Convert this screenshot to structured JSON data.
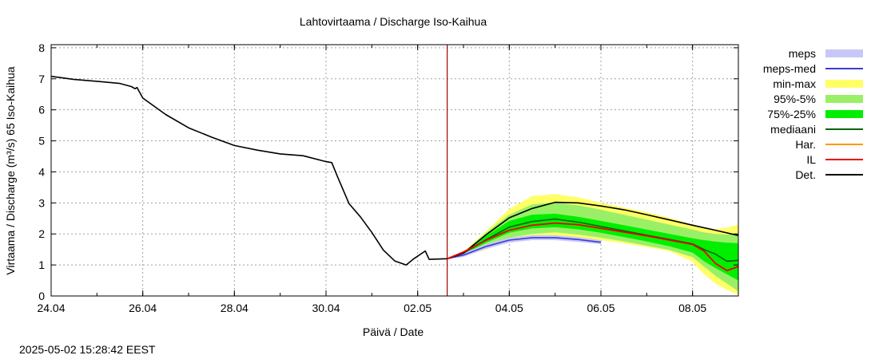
{
  "page": {
    "timestamp": "2025-05-02 15:28:42 EEST"
  },
  "chart_data": {
    "type": "line",
    "title": "Lahtovirtaama / Discharge  Iso-Kaihua",
    "xlabel": "Päivä / Date",
    "ylabel": "Virtaama / Discharge (m³/s)  65 Iso-Kaihua",
    "ylim": [
      0,
      8.1
    ],
    "xlim": [
      "2025-04-24T00:00",
      "2025-05-09T00:00"
    ],
    "yticks": [
      0,
      1,
      2,
      3,
      4,
      5,
      6,
      7,
      8
    ],
    "xticks": [
      {
        "x": "2025-04-24T00:00",
        "label": "24.04"
      },
      {
        "x": "2025-04-26T00:00",
        "label": "26.04"
      },
      {
        "x": "2025-04-28T00:00",
        "label": "28.04"
      },
      {
        "x": "2025-04-30T00:00",
        "label": "30.04"
      },
      {
        "x": "2025-05-02T00:00",
        "label": "02.05"
      },
      {
        "x": "2025-05-04T00:00",
        "label": "04.05"
      },
      {
        "x": "2025-05-06T00:00",
        "label": "06.05"
      },
      {
        "x": "2025-05-08T00:00",
        "label": "08.05"
      }
    ],
    "grid": true,
    "legend_position": "right",
    "current_time": "2025-05-02T15:28",
    "current_time_color": "#aa0000",
    "legend": [
      {
        "label": "meps",
        "kind": "band",
        "color": "#c8c8f8"
      },
      {
        "label": "meps-med",
        "kind": "line",
        "color": "#3b3bd0"
      },
      {
        "label": "min-max",
        "kind": "band",
        "color": "#ffff66"
      },
      {
        "label": "95%-5%",
        "kind": "band",
        "color": "#99f066"
      },
      {
        "label": "75%-25%",
        "kind": "band",
        "color": "#00ee00"
      },
      {
        "label": "mediaani",
        "kind": "line",
        "color": "#006600"
      },
      {
        "label": "Har.",
        "kind": "line",
        "color": "#ff9900"
      },
      {
        "label": "IL",
        "kind": "line",
        "color": "#ee0000"
      },
      {
        "label": "Det.",
        "kind": "line",
        "color": "#000000"
      }
    ],
    "observed": {
      "name": "Det.",
      "x": [
        "2025-04-24T00:00",
        "2025-04-24T12:00",
        "2025-04-25T00:00",
        "2025-04-25T12:00",
        "2025-04-25T18:00",
        "2025-04-25T20:00",
        "2025-04-25T21:00",
        "2025-04-26T00:00",
        "2025-04-26T12:00",
        "2025-04-27T00:00",
        "2025-04-27T12:00",
        "2025-04-28T00:00",
        "2025-04-28T12:00",
        "2025-04-29T00:00",
        "2025-04-29T12:00",
        "2025-04-30T00:00",
        "2025-04-30T03:00",
        "2025-04-30T06:00",
        "2025-04-30T12:00",
        "2025-04-30T18:00",
        "2025-05-01T00:00",
        "2025-05-01T06:00",
        "2025-05-01T12:00",
        "2025-05-01T18:00",
        "2025-05-01T22:00",
        "2025-05-02T04:00",
        "2025-05-02T06:00",
        "2025-05-02T15:28"
      ],
      "y": [
        7.08,
        6.98,
        6.92,
        6.85,
        6.75,
        6.68,
        6.72,
        6.38,
        5.85,
        5.42,
        5.12,
        4.85,
        4.7,
        4.58,
        4.52,
        4.33,
        4.3,
        3.85,
        2.98,
        2.55,
        2.05,
        1.48,
        1.13,
        1.0,
        1.2,
        1.45,
        1.18,
        1.2
      ]
    },
    "series": [
      {
        "name": "Det.",
        "x": [
          "2025-05-02T15:28",
          "2025-05-03T00:00",
          "2025-05-03T12:00",
          "2025-05-04T00:00",
          "2025-05-04T12:00",
          "2025-05-05T00:00",
          "2025-05-05T12:00",
          "2025-05-06T00:00",
          "2025-05-06T12:00",
          "2025-05-07T00:00",
          "2025-05-07T12:00",
          "2025-05-08T00:00",
          "2025-05-08T12:00",
          "2025-05-09T00:00"
        ],
        "y": [
          1.2,
          1.38,
          1.98,
          2.52,
          2.82,
          3.02,
          3.0,
          2.9,
          2.78,
          2.62,
          2.45,
          2.28,
          2.12,
          1.95
        ]
      },
      {
        "name": "mediaani",
        "x": [
          "2025-05-02T15:28",
          "2025-05-03T00:00",
          "2025-05-03T12:00",
          "2025-05-04T00:00",
          "2025-05-04T12:00",
          "2025-05-05T00:00",
          "2025-05-05T12:00",
          "2025-05-06T00:00",
          "2025-05-06T12:00",
          "2025-05-07T00:00",
          "2025-05-07T12:00",
          "2025-05-08T00:00",
          "2025-05-08T06:00",
          "2025-05-08T12:00",
          "2025-05-08T18:00",
          "2025-05-09T00:00"
        ],
        "y": [
          1.2,
          1.38,
          1.82,
          2.22,
          2.4,
          2.48,
          2.38,
          2.24,
          2.1,
          1.96,
          1.82,
          1.68,
          1.5,
          1.35,
          1.12,
          1.15
        ]
      },
      {
        "name": "IL",
        "x": [
          "2025-05-02T15:28",
          "2025-05-03T00:00",
          "2025-05-03T12:00",
          "2025-05-04T00:00",
          "2025-05-04T12:00",
          "2025-05-05T00:00",
          "2025-05-05T12:00",
          "2025-05-06T00:00",
          "2025-05-06T12:00",
          "2025-05-07T00:00",
          "2025-05-07T12:00",
          "2025-05-08T00:00",
          "2025-05-08T06:00",
          "2025-05-08T12:00",
          "2025-05-08T18:00",
          "2025-05-09T00:00"
        ],
        "y": [
          1.2,
          1.42,
          1.8,
          2.12,
          2.28,
          2.35,
          2.3,
          2.18,
          2.06,
          1.94,
          1.8,
          1.66,
          1.45,
          1.05,
          0.82,
          0.95
        ]
      },
      {
        "name": "meps-med",
        "x": [
          "2025-05-02T15:28",
          "2025-05-03T00:00",
          "2025-05-03T12:00",
          "2025-05-04T00:00",
          "2025-05-04T12:00",
          "2025-05-05T00:00",
          "2025-05-05T12:00",
          "2025-05-06T00:00"
        ],
        "y": [
          1.2,
          1.32,
          1.6,
          1.8,
          1.88,
          1.88,
          1.82,
          1.73
        ]
      }
    ],
    "bands": [
      {
        "name": "min-max",
        "x": [
          "2025-05-02T15:28",
          "2025-05-03T00:00",
          "2025-05-03T12:00",
          "2025-05-04T00:00",
          "2025-05-04T12:00",
          "2025-05-05T00:00",
          "2025-05-05T12:00",
          "2025-05-06T00:00",
          "2025-05-06T12:00",
          "2025-05-07T00:00",
          "2025-05-07T12:00",
          "2025-05-08T00:00",
          "2025-05-08T06:00",
          "2025-05-08T12:00",
          "2025-05-08T18:00",
          "2025-05-09T00:00"
        ],
        "low": [
          1.2,
          1.28,
          1.5,
          1.78,
          1.9,
          1.92,
          1.88,
          1.8,
          1.7,
          1.58,
          1.45,
          1.1,
          0.7,
          0.4,
          0.2,
          0.05
        ],
        "high": [
          1.2,
          1.42,
          2.1,
          2.8,
          3.22,
          3.28,
          3.18,
          3.0,
          2.85,
          2.7,
          2.52,
          2.3,
          2.2,
          2.15,
          2.2,
          2.3
        ]
      },
      {
        "name": "95%-5%",
        "x": [
          "2025-05-02T15:28",
          "2025-05-03T00:00",
          "2025-05-03T12:00",
          "2025-05-04T00:00",
          "2025-05-04T12:00",
          "2025-05-05T00:00",
          "2025-05-05T12:00",
          "2025-05-06T00:00",
          "2025-05-06T12:00",
          "2025-05-07T00:00",
          "2025-05-07T12:00",
          "2025-05-08T00:00",
          "2025-05-08T06:00",
          "2025-05-08T12:00",
          "2025-05-08T18:00",
          "2025-05-09T00:00"
        ],
        "low": [
          1.2,
          1.3,
          1.6,
          1.88,
          2.0,
          2.05,
          1.98,
          1.88,
          1.76,
          1.62,
          1.48,
          1.25,
          0.95,
          0.65,
          0.4,
          0.15
        ],
        "high": [
          1.2,
          1.4,
          2.05,
          2.62,
          2.95,
          3.02,
          2.92,
          2.78,
          2.62,
          2.46,
          2.3,
          2.14,
          2.05,
          2.0,
          1.98,
          2.0
        ]
      },
      {
        "name": "75%-25%",
        "x": [
          "2025-05-02T15:28",
          "2025-05-03T00:00",
          "2025-05-03T12:00",
          "2025-05-04T00:00",
          "2025-05-04T12:00",
          "2025-05-05T00:00",
          "2025-05-05T12:00",
          "2025-05-06T00:00",
          "2025-05-06T12:00",
          "2025-05-07T00:00",
          "2025-05-07T12:00",
          "2025-05-08T00:00",
          "2025-05-08T06:00",
          "2025-05-08T12:00",
          "2025-05-08T18:00",
          "2025-05-09T00:00"
        ],
        "low": [
          1.2,
          1.34,
          1.72,
          2.04,
          2.18,
          2.22,
          2.15,
          2.04,
          1.9,
          1.76,
          1.6,
          1.4,
          1.12,
          0.9,
          0.7,
          0.5
        ],
        "high": [
          1.2,
          1.38,
          1.95,
          2.42,
          2.62,
          2.65,
          2.55,
          2.42,
          2.28,
          2.14,
          2.0,
          1.86,
          1.8,
          1.75,
          1.72,
          1.7
        ]
      },
      {
        "name": "meps",
        "x": [
          "2025-05-02T15:28",
          "2025-05-03T00:00",
          "2025-05-03T12:00",
          "2025-05-04T00:00",
          "2025-05-04T12:00",
          "2025-05-05T00:00",
          "2025-05-05T12:00",
          "2025-05-06T00:00"
        ],
        "low": [
          1.2,
          1.26,
          1.52,
          1.72,
          1.8,
          1.8,
          1.74,
          1.67
        ],
        "high": [
          1.2,
          1.38,
          1.68,
          1.88,
          1.96,
          1.96,
          1.9,
          1.8
        ]
      }
    ]
  }
}
